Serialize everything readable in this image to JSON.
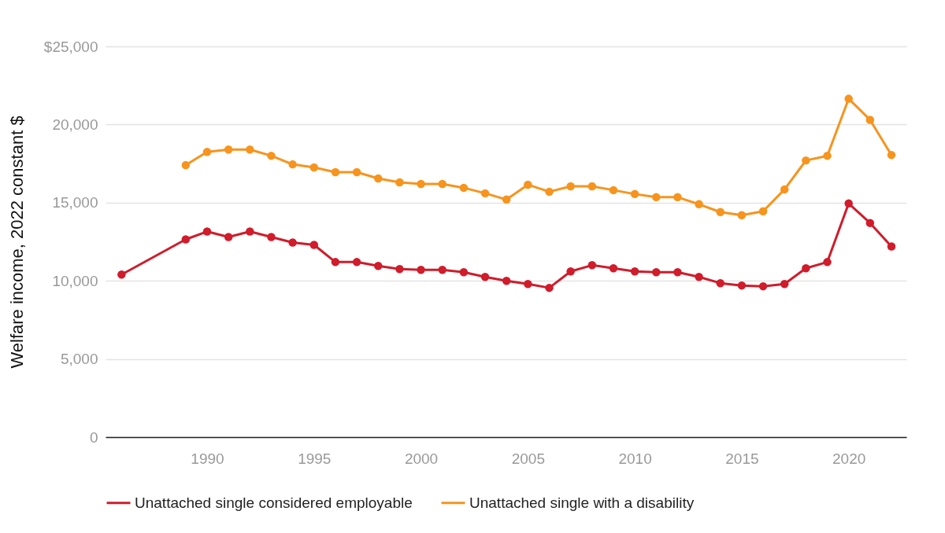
{
  "chart_data": {
    "type": "line",
    "ylabel": "Welfare income, 2022 constant $",
    "xlim": [
      1985.25,
      2022.7
    ],
    "xticks": [
      1990,
      1995,
      2000,
      2005,
      2010,
      2015,
      2020
    ],
    "ylim": [
      0,
      25000
    ],
    "yticks": [
      0,
      {
        "value": 5000,
        "label": "5,000"
      },
      {
        "value": 10000,
        "label": "10,000"
      },
      {
        "value": 15000,
        "label": "15,000"
      },
      {
        "value": 20000,
        "label": "20,000"
      },
      {
        "value": 25000,
        "label": "$25,000"
      }
    ],
    "grid": "y",
    "legend": "bottom",
    "marker": "circle",
    "line_style": "solid",
    "series": [
      {
        "name": "Unattached single considered employable",
        "color": "#d01c2b",
        "x": [
          1986,
          1989,
          1990,
          1991,
          1992,
          1993,
          1994,
          1995,
          1996,
          1997,
          1998,
          1999,
          2000,
          2001,
          2002,
          2003,
          2004,
          2005,
          2006,
          2007,
          2008,
          2009,
          2010,
          2011,
          2012,
          2013,
          2014,
          2015,
          2016,
          2017,
          2018,
          2019,
          2020,
          2021,
          2022
        ],
        "values": [
          10400,
          12650,
          13150,
          12800,
          13150,
          12800,
          12450,
          12300,
          11200,
          11200,
          10950,
          10750,
          10700,
          10700,
          10550,
          10250,
          10000,
          9800,
          9550,
          10600,
          11000,
          10800,
          10600,
          10550,
          10550,
          10250,
          9850,
          9700,
          9650,
          9800,
          10800,
          11200,
          14950,
          13700,
          12200
        ]
      },
      {
        "name": "Unattached single with a disability",
        "color": "#f7941d",
        "x": [
          1989,
          1990,
          1991,
          1992,
          1993,
          1994,
          1995,
          1996,
          1997,
          1998,
          1999,
          2000,
          2001,
          2002,
          2003,
          2004,
          2005,
          2006,
          2007,
          2008,
          2009,
          2010,
          2011,
          2012,
          2013,
          2014,
          2015,
          2016,
          2017,
          2018,
          2019,
          2020,
          2021,
          2022
        ],
        "values": [
          17400,
          18250,
          18400,
          18400,
          18000,
          17450,
          17250,
          16950,
          16950,
          16550,
          16300,
          16200,
          16200,
          15950,
          15600,
          15200,
          16150,
          15700,
          16050,
          16050,
          15800,
          15550,
          15350,
          15350,
          14900,
          14400,
          14200,
          14450,
          15850,
          17700,
          18000,
          21650,
          20300,
          18050
        ]
      }
    ]
  }
}
